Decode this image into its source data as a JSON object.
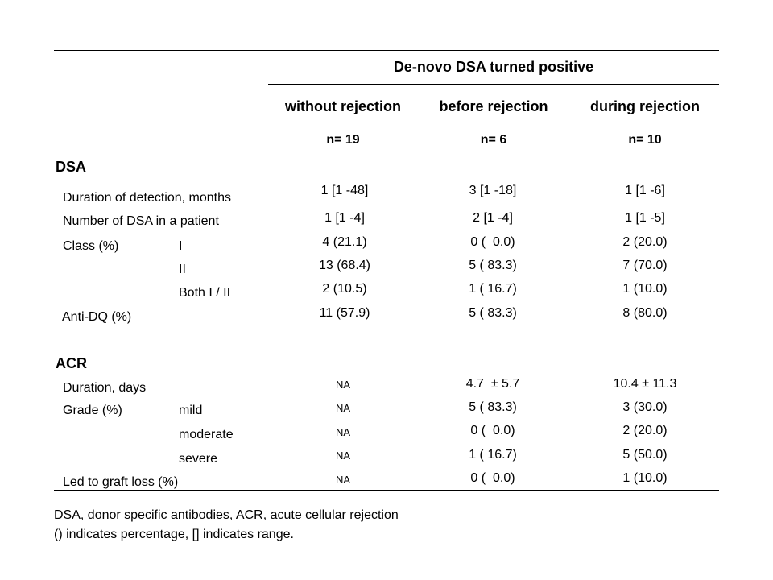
{
  "header": {
    "group_title": "De-novo DSA turned positive",
    "columns": [
      {
        "label": "without rejection",
        "n": "n= 19"
      },
      {
        "label": "before rejection",
        "n": "n= 6"
      },
      {
        "label": "during rejection",
        "n": "n= 10"
      }
    ]
  },
  "dsa": {
    "section_label": "DSA",
    "rows": [
      {
        "label": "Duration of detection, months",
        "sub": "",
        "values": [
          "1 [1 -48]",
          "3 [1 -18]",
          "1 [1 -6]"
        ]
      },
      {
        "label": "Number of DSA in a patient",
        "sub": "",
        "values": [
          "1 [1 -4]",
          "2 [1 -4]",
          "1 [1 -5]"
        ]
      },
      {
        "label": "Class (%)",
        "sub": "I",
        "values": [
          "4 (21.1)",
          "0 (  0.0)",
          "2 (20.0)"
        ]
      },
      {
        "label": "",
        "sub": "II",
        "values": [
          "13 (68.4)",
          "5 ( 83.3)",
          "7 (70.0)"
        ]
      },
      {
        "label": "",
        "sub": "Both I / II",
        "values": [
          "2 (10.5)",
          "1 ( 16.7)",
          "1 (10.0)"
        ]
      },
      {
        "label": "Anti-DQ (%)",
        "sub": "",
        "values": [
          "11 (57.9)",
          "5 ( 83.3)",
          "8 (80.0)"
        ]
      }
    ]
  },
  "acr": {
    "section_label": "ACR",
    "rows": [
      {
        "label": "Duration, days",
        "sub": "",
        "values": [
          "NA",
          "4.7  ± 5.7",
          "10.4 ± 11.3"
        ]
      },
      {
        "label": "Grade (%)",
        "sub": "mild",
        "values": [
          "NA",
          "5 ( 83.3)",
          "3 (30.0)"
        ]
      },
      {
        "label": "",
        "sub": "moderate",
        "values": [
          "NA",
          "0 (  0.0)",
          "2 (20.0)"
        ]
      },
      {
        "label": "",
        "sub": "severe",
        "values": [
          "NA",
          "1 ( 16.7)",
          "5 (50.0)"
        ]
      },
      {
        "label": "Led to graft loss (%)",
        "sub": "",
        "values": [
          "NA",
          "0 (  0.0)",
          "1 (10.0)"
        ]
      }
    ]
  },
  "footnotes": [
    "DSA, donor specific antibodies, ACR, acute cellular rejection",
    "() indicates percentage, [] indicates range."
  ]
}
